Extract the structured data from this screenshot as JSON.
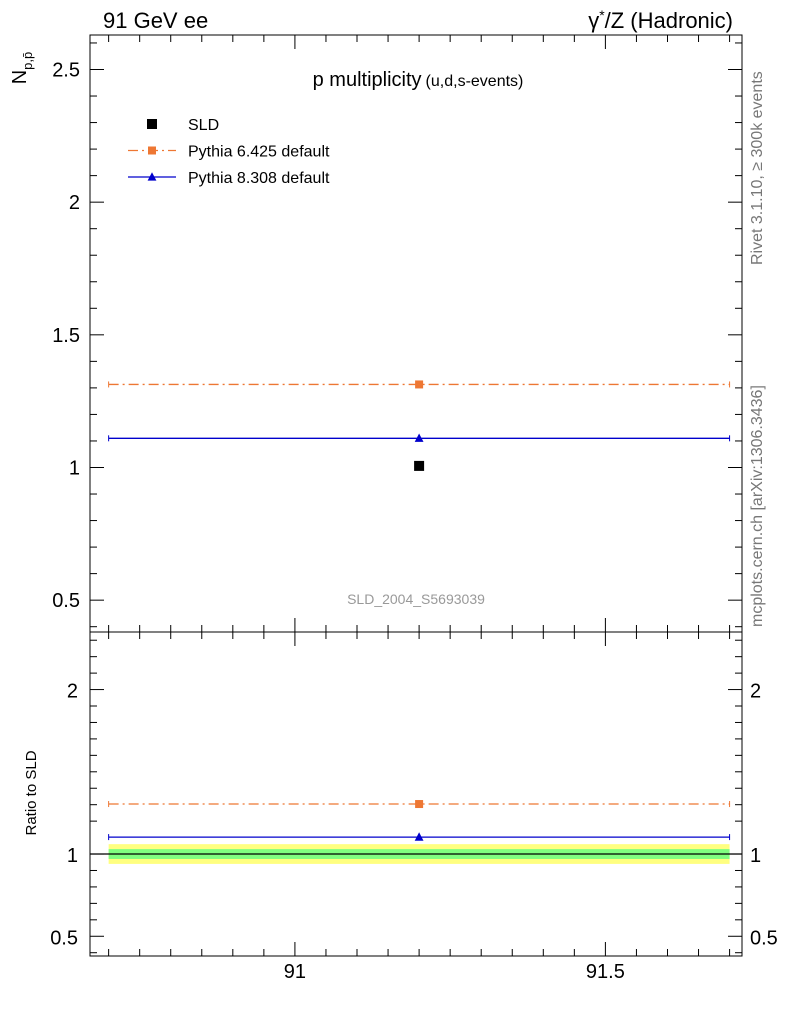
{
  "header": {
    "left": "91 GeV ee",
    "right_prefix": "γ",
    "right_sup": "*",
    "right_suffix": "/Z (Hadronic)"
  },
  "side_labels": {
    "version": "Rivet 3.1.10, ≥ 300k events",
    "source": "mcplots.cern.ch [arXiv:1306.3436]"
  },
  "chart_data": [
    {
      "type": "line",
      "panel": "main",
      "title": "p multiplicity",
      "subtitle": "(u,d,s-events)",
      "ylabel_main": "N",
      "ylabel_sub": "p,p̄",
      "watermark": "SLD_2004_S5693039",
      "xlim": [
        90.67,
        91.72
      ],
      "ylim": [
        0.38,
        2.63
      ],
      "yticks": [
        0.5,
        1,
        1.5,
        2,
        2.5
      ],
      "ytick_labels": [
        "0.5",
        "1",
        "1.5",
        "2",
        "2.5"
      ],
      "xbin": [
        90.7,
        91.7
      ],
      "legend_position": "top-left",
      "series": [
        {
          "name": "SLD",
          "color": "#000000",
          "marker": "square",
          "style": "point",
          "x": [
            91.2
          ],
          "y": [
            1.006
          ]
        },
        {
          "name": "Pythia 6.425 default",
          "color": "#ee7733",
          "marker": "square",
          "style": "dashdot",
          "x": [
            91.2
          ],
          "y": [
            1.313
          ]
        },
        {
          "name": "Pythia 8.308 default",
          "color": "#0000cc",
          "marker": "triangle",
          "style": "solid",
          "x": [
            91.2
          ],
          "y": [
            1.11
          ]
        }
      ]
    },
    {
      "type": "line",
      "panel": "ratio",
      "ylabel": "Ratio to SLD",
      "xlim": [
        90.67,
        91.72
      ],
      "ylim": [
        0.38,
        2.35
      ],
      "yticks": [
        0.5,
        1,
        2
      ],
      "ytick_labels": [
        "0.5",
        "1",
        "2"
      ],
      "xticks": [
        91,
        91.5
      ],
      "xtick_labels": [
        "91",
        "91.5"
      ],
      "xbin": [
        90.7,
        91.7
      ],
      "band_outer": [
        0.94,
        1.06
      ],
      "band_inner": [
        0.97,
        1.03
      ],
      "band_colors": {
        "outer": "#ffff80",
        "inner": "#80ff80"
      },
      "series": [
        {
          "name": "Pythia 6.425 default",
          "color": "#ee7733",
          "marker": "square",
          "style": "dashdot",
          "x": [
            91.2
          ],
          "y": [
            1.304
          ]
        },
        {
          "name": "Pythia 8.308 default",
          "color": "#0000cc",
          "marker": "triangle",
          "style": "solid",
          "x": [
            91.2
          ],
          "y": [
            1.103
          ]
        }
      ]
    }
  ]
}
